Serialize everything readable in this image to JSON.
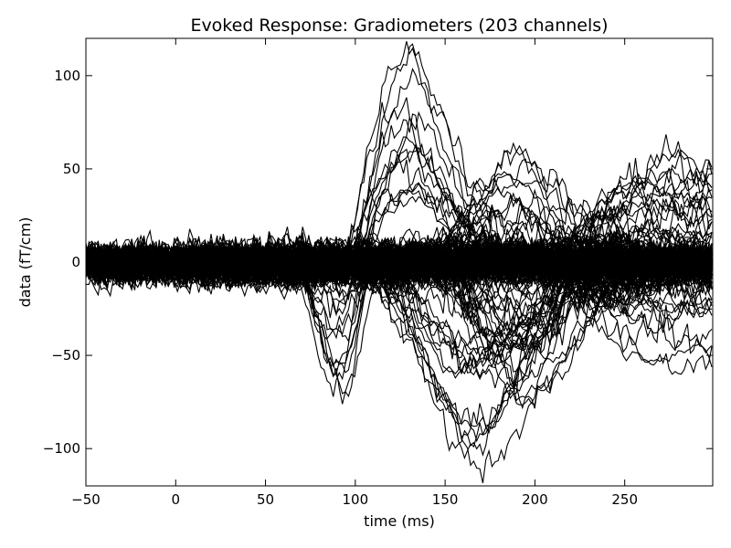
{
  "chart_data": {
    "type": "line",
    "title": "Evoked Response: Gradiometers (203 channels)",
    "xlabel": "time (ms)",
    "ylabel": "data (fT/cm)",
    "xlim": [
      -50,
      299
    ],
    "ylim": [
      -120,
      120
    ],
    "x_ticks": [
      -50,
      0,
      50,
      100,
      150,
      200,
      250
    ],
    "y_ticks": [
      -100,
      -50,
      0,
      50,
      100
    ],
    "channel_count": 203,
    "grid": false,
    "legend": "none",
    "line_color": "#000000",
    "representative_series": [
      {
        "x": [
          -50,
          100,
          110,
          120,
          128,
          135,
          140,
          150,
          160,
          180,
          200,
          220,
          299
        ],
        "y": [
          0,
          5,
          60,
          95,
          110,
          108,
          90,
          70,
          40,
          10,
          0,
          5,
          5
        ]
      },
      {
        "x": [
          -50,
          70,
          80,
          88,
          95,
          105,
          120,
          299
        ],
        "y": [
          0,
          -10,
          -45,
          -70,
          -60,
          -15,
          0,
          0
        ]
      },
      {
        "x": [
          -50,
          110,
          130,
          150,
          160,
          168,
          180,
          200,
          220,
          299
        ],
        "y": [
          0,
          -5,
          -40,
          -85,
          -105,
          -110,
          -95,
          -60,
          -20,
          0
        ]
      },
      {
        "x": [
          -50,
          150,
          170,
          185,
          200,
          220,
          299
        ],
        "y": [
          0,
          5,
          35,
          50,
          40,
          15,
          5
        ]
      },
      {
        "x": [
          -50,
          150,
          170,
          190,
          210,
          230,
          299
        ],
        "y": [
          0,
          -10,
          -50,
          -75,
          -60,
          -25,
          -5
        ]
      },
      {
        "x": [
          -50,
          220,
          240,
          260,
          280,
          299
        ],
        "y": [
          0,
          10,
          35,
          50,
          55,
          45
        ]
      },
      {
        "x": [
          -50,
          220,
          240,
          260,
          280,
          299
        ],
        "y": [
          0,
          -10,
          -30,
          -40,
          -35,
          -45
        ]
      }
    ]
  }
}
